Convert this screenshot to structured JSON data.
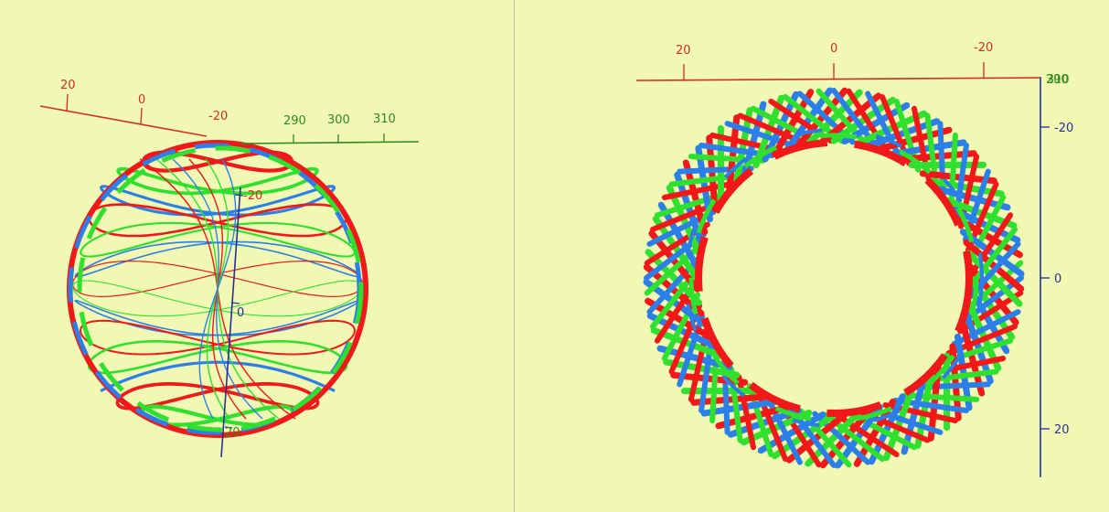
{
  "colors": {
    "background": "#f1f8b3",
    "divider": "#b9bfa0",
    "axis_x": "#d92b20",
    "axis_y": "#2f8a20",
    "axis_z": "#26309a",
    "curve_red": "#f01818",
    "curve_green": "#2fe02f",
    "curve_blue": "#2b7fe6"
  },
  "left_view": {
    "x_axis_ticks": [
      "20",
      "0",
      "-20"
    ],
    "y_axis_ticks": [
      "290",
      "300",
      "310"
    ],
    "z_axis_ticks": [
      "-20",
      "0",
      "20"
    ]
  },
  "right_view": {
    "x_axis_ticks": [
      "20",
      "0",
      "-20"
    ],
    "y_axis_ticks": [
      "290",
      "300",
      "310"
    ],
    "z_axis_ticks": [
      "-20",
      "0",
      "20"
    ]
  }
}
